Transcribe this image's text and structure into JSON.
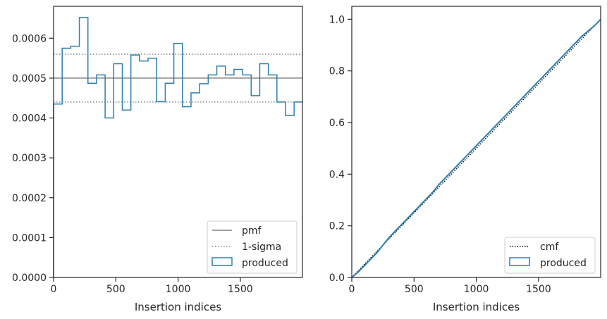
{
  "chart_data": [
    {
      "type": "histogram-step",
      "title": "",
      "xlabel": "Insertion indices",
      "ylabel": "",
      "xlim": [
        0,
        1999
      ],
      "ylim": [
        0,
        0.00068
      ],
      "xticks": [
        0,
        500,
        1000,
        1500
      ],
      "yticks": [
        0,
        0.0001,
        0.0002,
        0.0003,
        0.0004,
        0.0005,
        0.0006
      ],
      "ytick_labels": [
        "0.0000",
        "0.0001",
        "0.0002",
        "0.0003",
        "0.0004",
        "0.0005",
        "0.0006"
      ],
      "legend": {
        "position": "lower right",
        "entries": [
          "pmf",
          "1-sigma",
          "produced"
        ]
      },
      "pmf": 0.0005,
      "sigma_band": [
        0.00044,
        0.00056
      ],
      "colors": {
        "produced": "#2f7fb3",
        "pmf": "#808080",
        "sigma": "#808080"
      },
      "series": [
        {
          "name": "produced",
          "bin_width": 69,
          "edges_start": 0,
          "values": [
            0.000435,
            0.000575,
            0.00058,
            0.000652,
            0.000487,
            0.000508,
            0.0004,
            0.000536,
            0.00042,
            0.000558,
            0.000543,
            0.00055,
            0.000441,
            0.000487,
            0.000587,
            0.000428,
            0.000463,
            0.000486,
            0.000508,
            0.00053,
            0.000508,
            0.000522,
            0.000508,
            0.000456,
            0.000536,
            0.000508,
            0.00044,
            0.000406,
            0.00044
          ]
        }
      ]
    },
    {
      "type": "line",
      "title": "",
      "xlabel": "Insertion indices",
      "ylabel": "",
      "xlim": [
        0,
        1999
      ],
      "ylim": [
        0,
        1.05
      ],
      "xticks": [
        0,
        500,
        1000,
        1500
      ],
      "yticks": [
        0,
        0.2,
        0.4,
        0.6,
        0.8,
        1.0
      ],
      "ytick_labels": [
        "0.0",
        "0.2",
        "0.4",
        "0.6",
        "0.8",
        "1.0"
      ],
      "legend": {
        "position": "lower right",
        "entries": [
          "cmf",
          "produced"
        ]
      },
      "colors": {
        "produced": "#2f7fb3",
        "cmf": "#000000"
      },
      "series": [
        {
          "name": "cmf",
          "x": [
            0,
            1999
          ],
          "y": [
            0,
            1.0
          ]
        },
        {
          "name": "produced",
          "x": [
            0,
            50,
            100,
            150,
            200,
            250,
            300,
            350,
            400,
            450,
            500,
            550,
            600,
            650,
            700,
            750,
            800,
            850,
            900,
            950,
            1000,
            1050,
            1100,
            1150,
            1200,
            1250,
            1300,
            1350,
            1400,
            1450,
            1500,
            1550,
            1600,
            1650,
            1700,
            1750,
            1800,
            1850,
            1900,
            1950,
            1999
          ],
          "y": [
            0,
            0.02,
            0.045,
            0.07,
            0.095,
            0.125,
            0.155,
            0.18,
            0.205,
            0.23,
            0.255,
            0.28,
            0.305,
            0.33,
            0.36,
            0.385,
            0.41,
            0.435,
            0.46,
            0.485,
            0.51,
            0.535,
            0.56,
            0.585,
            0.61,
            0.635,
            0.66,
            0.685,
            0.71,
            0.735,
            0.76,
            0.785,
            0.81,
            0.835,
            0.86,
            0.885,
            0.91,
            0.935,
            0.955,
            0.975,
            1.0
          ]
        }
      ]
    }
  ]
}
